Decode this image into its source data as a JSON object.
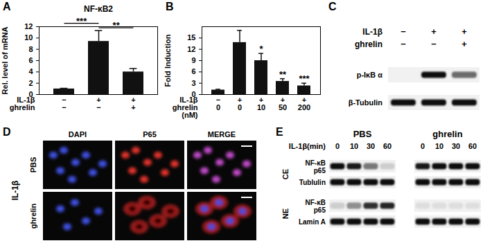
{
  "chart_data": [
    {
      "panel": "A",
      "type": "bar",
      "title": "NF-κB2",
      "y_label": "Rel. level of mRNA",
      "categories": [
        null,
        null,
        null
      ],
      "values": [
        1,
        9.4,
        4.0
      ],
      "errors": [
        0.1,
        1.9,
        0.6
      ],
      "color": "#111111",
      "ylim": [
        0,
        12
      ],
      "yticks": [
        0,
        2,
        4,
        6,
        8,
        10,
        12
      ],
      "conditions": [
        {
          "name": "IL-1β",
          "values": [
            "−",
            "+",
            "+"
          ]
        },
        {
          "name": "ghrelin",
          "values": [
            "−",
            "−",
            "+"
          ]
        }
      ],
      "significance": [
        {
          "from": 0,
          "to": 1,
          "label": "***"
        },
        {
          "from": 1,
          "to": 2,
          "label": "**"
        }
      ]
    },
    {
      "panel": "B",
      "type": "bar",
      "y_label": "Fold Induction",
      "categories": [
        null,
        null,
        null,
        null,
        null
      ],
      "values": [
        1.2,
        13.8,
        9.0,
        3.5,
        2.3
      ],
      "errors": [
        0.2,
        3.2,
        1.9,
        0.7,
        0.7
      ],
      "color": "#111111",
      "ylim": [
        0,
        18
      ],
      "yticks": [
        0,
        3,
        6,
        9,
        12,
        15
      ],
      "conditions": [
        {
          "name": "IL-1β",
          "values": [
            "−",
            "+",
            "+",
            "+",
            "+"
          ]
        },
        {
          "name": "ghrelin",
          "unit": "(nM)",
          "values": [
            0,
            0,
            10,
            50,
            200
          ]
        }
      ],
      "stars": [
        null,
        null,
        "*",
        "**",
        "***"
      ]
    }
  ],
  "blots": {
    "C": {
      "panel": "C",
      "conditions": [
        {
          "name": "IL-1β",
          "values": [
            "−",
            "+",
            "+"
          ]
        },
        {
          "name": "ghrelin",
          "values": [
            "−",
            "−",
            "+"
          ]
        }
      ],
      "rows": [
        {
          "name": "p-IκB α",
          "intensity": [
            0,
            1,
            0.6
          ]
        },
        {
          "name": "β-Tubulin",
          "intensity": [
            1,
            1,
            1
          ]
        }
      ]
    },
    "E": {
      "panel": "E",
      "time_label": "IL-1β(min)",
      "groups": [
        {
          "name": "PBS",
          "times": [
            0,
            10,
            30,
            60
          ],
          "fractions": [
            {
              "name": "CE",
              "rows": [
                {
                  "name": "NF-κB\np65",
                  "intensity": [
                    1,
                    0.95,
                    0.55,
                    0.15
                  ]
                },
                {
                  "name": "Tublulin",
                  "intensity": [
                    1,
                    1,
                    1,
                    1
                  ]
                }
              ]
            },
            {
              "name": "NE",
              "rows": [
                {
                  "name": "NF-κB\np65",
                  "intensity": [
                    0.15,
                    0.45,
                    0.85,
                    0.9
                  ]
                },
                {
                  "name": "Lamin A",
                  "intensity": [
                    1,
                    1,
                    1,
                    1
                  ]
                }
              ]
            }
          ]
        },
        {
          "name": "ghrelin",
          "times": [
            0,
            10,
            30,
            60
          ],
          "fractions": [
            {
              "name": "CE",
              "rows": [
                {
                  "name": "NF-κB\np65",
                  "intensity": [
                    0.95,
                    1,
                    1,
                    1
                  ]
                },
                {
                  "name": "Tublulin",
                  "intensity": [
                    1,
                    1,
                    1,
                    1
                  ]
                }
              ]
            },
            {
              "name": "NE",
              "rows": [
                {
                  "name": "NF-κB\np65",
                  "intensity": [
                    0.08,
                    0.08,
                    0.08,
                    0.08
                  ]
                },
                {
                  "name": "Lamin A",
                  "intensity": [
                    1,
                    1,
                    1,
                    1
                  ]
                }
              ]
            }
          ]
        }
      ]
    }
  },
  "images": {
    "D": {
      "panel": "D",
      "side_label": "IL-1β",
      "columns": [
        "DAPI",
        "P65",
        "MERGE"
      ],
      "rows": [
        "PBS",
        "ghrelin"
      ]
    }
  }
}
